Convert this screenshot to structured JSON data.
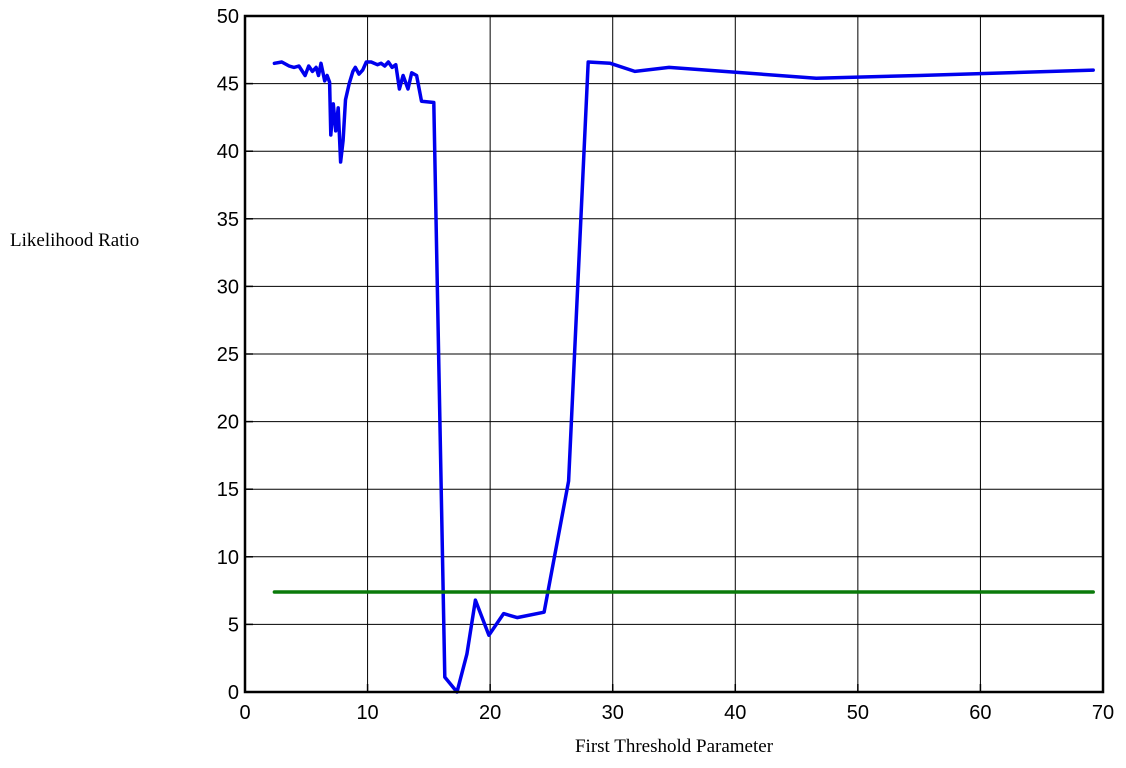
{
  "chart_data": {
    "type": "line",
    "title": "",
    "xlabel": "First Threshold Parameter",
    "ylabel": "Likelihood Ratio",
    "xlim": [
      0,
      70
    ],
    "ylim": [
      0,
      50
    ],
    "xticks": [
      0,
      10,
      20,
      30,
      40,
      50,
      60,
      70
    ],
    "yticks": [
      0,
      5,
      10,
      15,
      20,
      25,
      30,
      35,
      40,
      45,
      50
    ],
    "grid": true,
    "legend": "none",
    "series": [
      {
        "color": "#0000ee",
        "points": [
          [
            2.4,
            46.5
          ],
          [
            3.0,
            46.6
          ],
          [
            3.6,
            46.3
          ],
          [
            4.0,
            46.2
          ],
          [
            4.4,
            46.3
          ],
          [
            4.9,
            45.6
          ],
          [
            5.2,
            46.3
          ],
          [
            5.5,
            45.9
          ],
          [
            5.8,
            46.2
          ],
          [
            6.0,
            45.6
          ],
          [
            6.2,
            46.5
          ],
          [
            6.5,
            45.2
          ],
          [
            6.7,
            45.6
          ],
          [
            6.9,
            45.1
          ],
          [
            7.0,
            41.2
          ],
          [
            7.2,
            43.5
          ],
          [
            7.4,
            41.5
          ],
          [
            7.6,
            43.2
          ],
          [
            7.8,
            39.2
          ],
          [
            8.0,
            40.8
          ],
          [
            8.2,
            43.8
          ],
          [
            8.5,
            45.0
          ],
          [
            8.8,
            45.9
          ],
          [
            9.0,
            46.2
          ],
          [
            9.3,
            45.7
          ],
          [
            9.6,
            46.0
          ],
          [
            9.9,
            46.6
          ],
          [
            10.3,
            46.6
          ],
          [
            10.8,
            46.4
          ],
          [
            11.1,
            46.5
          ],
          [
            11.4,
            46.3
          ],
          [
            11.7,
            46.6
          ],
          [
            12.0,
            46.2
          ],
          [
            12.3,
            46.4
          ],
          [
            12.6,
            44.6
          ],
          [
            12.9,
            45.6
          ],
          [
            13.3,
            44.6
          ],
          [
            13.6,
            45.8
          ],
          [
            14.0,
            45.6
          ],
          [
            14.4,
            43.7
          ],
          [
            15.4,
            43.6
          ],
          [
            16.3,
            1.1
          ],
          [
            17.3,
            0.0
          ],
          [
            18.1,
            2.8
          ],
          [
            18.8,
            6.8
          ],
          [
            19.9,
            4.2
          ],
          [
            21.1,
            5.8
          ],
          [
            22.2,
            5.5
          ],
          [
            24.4,
            5.9
          ],
          [
            26.4,
            15.6
          ],
          [
            28.0,
            46.6
          ],
          [
            29.8,
            46.5
          ],
          [
            31.8,
            45.9
          ],
          [
            34.6,
            46.2
          ],
          [
            46.6,
            45.4
          ],
          [
            55.0,
            45.6
          ],
          [
            69.2,
            46.0
          ]
        ]
      },
      {
        "color": "#0a7a0a",
        "points": [
          [
            2.4,
            7.4
          ],
          [
            69.2,
            7.4
          ]
        ]
      }
    ]
  }
}
